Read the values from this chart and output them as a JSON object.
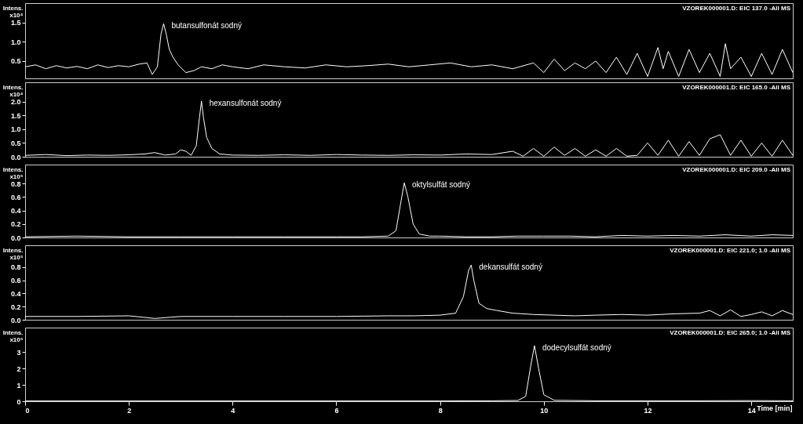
{
  "chart_data": [
    {
      "type": "line",
      "ylabel": "Intens. x10⁴",
      "xlim": [
        0,
        14.8
      ],
      "xticks": [
        0,
        2,
        4,
        6,
        8,
        10,
        12,
        14
      ],
      "ylim": [
        0.05,
        2.0
      ],
      "yticks": [
        0.5,
        {
          "value": 1,
          "label": "1.0"
        },
        1.5
      ],
      "tick_labels": "y",
      "annotations": [
        "VZOREK000001.D: EIC 137.0 -All MS",
        {
          "text": "butansulfonát sodný",
          "x": 2.67,
          "y": 1.47
        }
      ],
      "series": [
        {
          "color": "#ffffff",
          "x": [
            0,
            0.2,
            0.4,
            0.6,
            0.8,
            1.0,
            1.2,
            1.4,
            1.6,
            1.8,
            2.0,
            2.2,
            2.35,
            2.45,
            2.55,
            2.62,
            2.67,
            2.72,
            2.78,
            2.85,
            2.95,
            3.1,
            3.25,
            3.4,
            3.6,
            3.8,
            4.0,
            4.3,
            4.6,
            5.0,
            5.4,
            5.8,
            6.2,
            6.6,
            7.0,
            7.4,
            7.8,
            8.2,
            8.6,
            9.0,
            9.4,
            9.8,
            10.0,
            10.2,
            10.4,
            10.6,
            10.8,
            11.0,
            11.2,
            11.4,
            11.6,
            11.8,
            12.0,
            12.2,
            12.3,
            12.4,
            12.6,
            12.8,
            13.0,
            13.2,
            13.4,
            13.5,
            13.6,
            13.8,
            14.0,
            14.2,
            14.4,
            14.6,
            14.8
          ],
          "values": [
            0.35,
            0.4,
            0.3,
            0.38,
            0.32,
            0.36,
            0.3,
            0.4,
            0.33,
            0.38,
            0.35,
            0.42,
            0.45,
            0.15,
            0.35,
            1.2,
            1.47,
            1.2,
            0.8,
            0.6,
            0.4,
            0.2,
            0.25,
            0.35,
            0.3,
            0.4,
            0.35,
            0.3,
            0.4,
            0.35,
            0.32,
            0.4,
            0.35,
            0.38,
            0.42,
            0.35,
            0.4,
            0.45,
            0.35,
            0.4,
            0.3,
            0.45,
            0.2,
            0.55,
            0.25,
            0.45,
            0.3,
            0.5,
            0.2,
            0.6,
            0.15,
            0.7,
            0.1,
            0.85,
            0.3,
            0.75,
            0.1,
            0.8,
            0.2,
            0.7,
            0.1,
            0.95,
            0.3,
            0.6,
            0.1,
            0.7,
            0.15,
            0.8,
            0.2
          ]
        }
      ]
    },
    {
      "type": "line",
      "ylabel": "Intens. x10⁴",
      "xlim": [
        0,
        14.8
      ],
      "xticks": [
        0,
        2,
        4,
        6,
        8,
        10,
        12,
        14
      ],
      "ylim": [
        0,
        2.7
      ],
      "yticks": [
        {
          "value": 0,
          "label": "0.0"
        },
        0.5,
        {
          "value": 1,
          "label": "1.0"
        },
        1.5,
        {
          "value": 2,
          "label": "2.0"
        }
      ],
      "tick_labels": "y",
      "annotations": [
        "VZOREK000001.D: EIC 165.0 -All MS",
        {
          "text": "hexansulfonát sodný",
          "x": 3.4,
          "y": 2.02
        }
      ],
      "series": [
        {
          "color": "#ffffff",
          "x": [
            0,
            0.4,
            0.8,
            1.2,
            1.6,
            2.0,
            2.3,
            2.5,
            2.7,
            2.9,
            3.0,
            3.1,
            3.2,
            3.3,
            3.36,
            3.4,
            3.44,
            3.5,
            3.6,
            3.75,
            4.0,
            4.5,
            5.0,
            5.5,
            6.0,
            6.5,
            7.0,
            7.5,
            8.0,
            8.5,
            9.0,
            9.4,
            9.6,
            9.8,
            10.0,
            10.2,
            10.4,
            10.6,
            10.8,
            11.0,
            11.2,
            11.4,
            11.6,
            11.8,
            12.0,
            12.2,
            12.4,
            12.6,
            12.8,
            13.0,
            13.2,
            13.4,
            13.6,
            13.8,
            14.0,
            14.2,
            14.4,
            14.6,
            14.8
          ],
          "values": [
            0.05,
            0.08,
            0.04,
            0.06,
            0.05,
            0.07,
            0.1,
            0.15,
            0.06,
            0.1,
            0.25,
            0.2,
            0.05,
            0.4,
            1.4,
            2.02,
            1.4,
            0.7,
            0.3,
            0.1,
            0.06,
            0.05,
            0.07,
            0.05,
            0.08,
            0.06,
            0.05,
            0.07,
            0.06,
            0.1,
            0.08,
            0.2,
            0.02,
            0.3,
            0.02,
            0.35,
            0.05,
            0.3,
            0.02,
            0.25,
            0.02,
            0.3,
            0.02,
            0.05,
            0.5,
            0.05,
            0.6,
            0.02,
            0.55,
            0.05,
            0.65,
            0.8,
            0.05,
            0.6,
            0.02,
            0.5,
            0.02,
            0.6,
            0.05
          ]
        }
      ]
    },
    {
      "type": "line",
      "ylabel": "Intens. x10⁵",
      "xlim": [
        0,
        14.8
      ],
      "xticks": [
        0,
        2,
        4,
        6,
        8,
        10,
        12,
        14
      ],
      "ylim": [
        0,
        1.08
      ],
      "yticks": [
        {
          "value": 0,
          "label": "0.0"
        },
        0.2,
        0.4,
        0.6,
        0.8
      ],
      "tick_labels": "y",
      "annotations": [
        "VZOREK000001.D: EIC 209.0 -All MS",
        {
          "text": "oktylsulfát sodný",
          "x": 7.31,
          "y": 0.81
        }
      ],
      "series": [
        {
          "color": "#ffffff",
          "x": [
            0,
            1,
            2,
            3,
            4,
            5,
            6,
            6.5,
            7.0,
            7.15,
            7.25,
            7.31,
            7.38,
            7.48,
            7.6,
            7.8,
            8,
            8.5,
            9,
            9.5,
            10,
            10.5,
            11,
            11.5,
            12,
            12.5,
            13,
            13.5,
            14,
            14.4,
            14.8
          ],
          "values": [
            0.01,
            0.02,
            0.01,
            0.01,
            0.01,
            0.01,
            0.01,
            0.01,
            0.02,
            0.1,
            0.55,
            0.81,
            0.6,
            0.2,
            0.05,
            0.02,
            0.02,
            0.01,
            0.01,
            0.02,
            0.02,
            0.02,
            0.01,
            0.03,
            0.02,
            0.03,
            0.02,
            0.04,
            0.02,
            0.04,
            0.03
          ]
        }
      ]
    },
    {
      "type": "line",
      "ylabel": "Intens. x10⁵",
      "xlim": [
        0,
        14.8
      ],
      "xticks": [
        0,
        2,
        4,
        6,
        8,
        10,
        12,
        14
      ],
      "ylim": [
        0,
        1.13
      ],
      "yticks": [
        {
          "value": 0,
          "label": "0.0"
        },
        0.2,
        0.4,
        0.6,
        0.8
      ],
      "tick_labels": "y",
      "annotations": [
        "VZOREK000001.D: EIC 221.0; 1.0 -All MS",
        {
          "text": "dekansulfát sodný",
          "x": 8.6,
          "y": 0.83
        }
      ],
      "series": [
        {
          "color": "#ffffff",
          "x": [
            0,
            1,
            2,
            2.5,
            3,
            4,
            5,
            6,
            7,
            7.5,
            8,
            8.3,
            8.45,
            8.55,
            8.6,
            8.65,
            8.75,
            8.9,
            9.1,
            9.4,
            9.8,
            10.2,
            10.6,
            11,
            11.5,
            12,
            12.5,
            13,
            13.2,
            13.4,
            13.6,
            13.8,
            14,
            14.2,
            14.4,
            14.6,
            14.8
          ],
          "values": [
            0.05,
            0.05,
            0.06,
            0.02,
            0.05,
            0.05,
            0.05,
            0.05,
            0.06,
            0.06,
            0.07,
            0.1,
            0.35,
            0.75,
            0.83,
            0.6,
            0.25,
            0.17,
            0.14,
            0.1,
            0.08,
            0.07,
            0.06,
            0.07,
            0.08,
            0.07,
            0.09,
            0.1,
            0.14,
            0.06,
            0.15,
            0.05,
            0.08,
            0.12,
            0.06,
            0.14,
            0.08
          ]
        }
      ]
    },
    {
      "type": "line",
      "ylabel": "Intens. x10⁵",
      "xlabel": "Time [min]",
      "xlim": [
        0,
        14.8
      ],
      "xticks": [
        0,
        2,
        4,
        6,
        8,
        10,
        12,
        14
      ],
      "ylim": [
        0,
        4.5
      ],
      "yticks": [
        0,
        1,
        2,
        3
      ],
      "annotations": [
        "VZOREK000001.D: EIC 265.0; 1.0 -All MS",
        {
          "text": "dodecylsulfát sodný",
          "x": 9.82,
          "y": 3.4
        }
      ],
      "series": [
        {
          "color": "#ffffff",
          "x": [
            0,
            2,
            4,
            6,
            8,
            9,
            9.5,
            9.65,
            9.75,
            9.82,
            9.9,
            10.0,
            10.2,
            11,
            12,
            13,
            14,
            14.8
          ],
          "values": [
            0.02,
            0.02,
            0.02,
            0.02,
            0.02,
            0.03,
            0.05,
            0.3,
            2.2,
            3.4,
            2.0,
            0.4,
            0.06,
            0.03,
            0.03,
            0.03,
            0.04,
            0.03
          ]
        }
      ]
    }
  ]
}
